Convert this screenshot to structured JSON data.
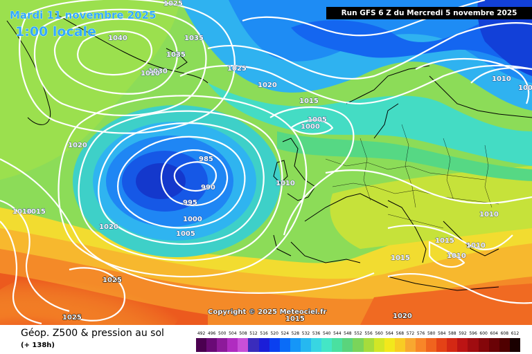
{
  "header": {
    "date": "Mardi 11 novembre 2025",
    "hour": "1:00 locale",
    "run": "Run GFS 6 Z du Mercredi 5 novembre 2025"
  },
  "copyright": "Copyright © 2025 Meteociel.fr",
  "footer": {
    "title": "Géop. Z500 & pression au sol",
    "step": "(+ 138h)"
  },
  "isobar_labels": [
    "1025",
    "1040",
    "1035",
    "1035",
    "1030",
    "1010",
    "1025",
    "1020",
    "1015",
    "1005",
    "1000",
    "1020",
    "985",
    "990",
    "995",
    "1000",
    "1005",
    "1010",
    "1020",
    "1015",
    "1010",
    "1025",
    "1025",
    "1015",
    "1020",
    "1010",
    "1010",
    "1015",
    "1010",
    "1010",
    "1015",
    "1005"
  ],
  "legend": {
    "labels": [
      "492",
      "496",
      "500",
      "504",
      "508",
      "512",
      "516",
      "520",
      "524",
      "528",
      "532",
      "536",
      "540",
      "544",
      "548",
      "552",
      "556",
      "560",
      "564",
      "568",
      "572",
      "576",
      "580",
      "584",
      "588",
      "592",
      "596",
      "600",
      "604",
      "608",
      "612"
    ],
    "colors": [
      "#4b0050",
      "#6a0a76",
      "#8d1a9a",
      "#b02cc0",
      "#c850d8",
      "#3a2cbc",
      "#1b1ed8",
      "#0a40f0",
      "#0a6cf8",
      "#1596f8",
      "#26b8f0",
      "#38d6e2",
      "#44e6c6",
      "#4ae0a0",
      "#5ad47c",
      "#7ad45a",
      "#a6dc3c",
      "#d2e626",
      "#f2e81c",
      "#f8cc24",
      "#f8a830",
      "#f88628",
      "#f0641e",
      "#e44216",
      "#d42814",
      "#bc1414",
      "#a00c10",
      "#84060a",
      "#6a0206",
      "#500000",
      "#1a0000"
    ]
  }
}
